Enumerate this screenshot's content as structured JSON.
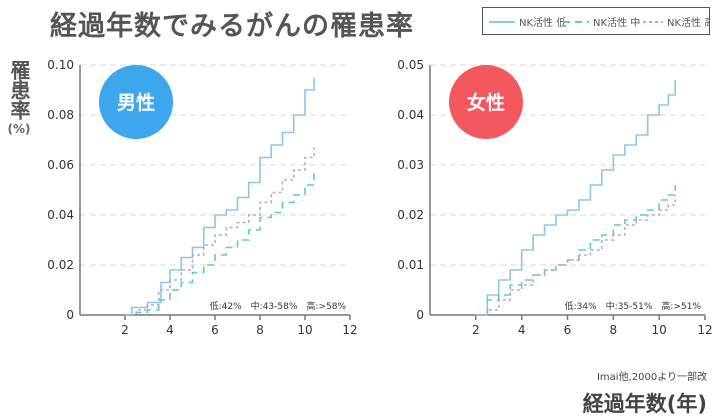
{
  "title": "経過年数でみるがんの罹患率",
  "ylabel": "罹患率",
  "yunit": "(%)",
  "xlabel": "経過年数(年)",
  "source": "Imai他,2000より一部改",
  "legend": [
    {
      "label": "NK活性 低",
      "color": "#8ec5ec",
      "style": "solid"
    },
    {
      "label": "NK活性 中",
      "color": "#5fcfae",
      "style": "dashed"
    },
    {
      "label": "NK活性 高",
      "color": "#b9a4e0",
      "style": "dotted"
    }
  ],
  "chart_data": [
    {
      "type": "line",
      "badge": "男性",
      "badge_color": "#3ea6ec",
      "annotation": "低:42%　中:43-58%　高:>58%",
      "xlim": [
        0,
        12
      ],
      "ylim": [
        0,
        0.1
      ],
      "xticks": [
        2,
        4,
        6,
        8,
        10,
        12
      ],
      "yticks": [
        0,
        0.02,
        0.04,
        0.06,
        0.08,
        0.1
      ],
      "ytick_labels": [
        "0",
        "0.02",
        "0.04",
        "0.06",
        "0.08",
        "0.10"
      ],
      "series": [
        {
          "name": "NK活性 低",
          "x": [
            2.0,
            2.3,
            3.0,
            3.6,
            4.0,
            4.5,
            5.0,
            5.5,
            6.0,
            6.5,
            7.0,
            7.5,
            8.0,
            8.5,
            9.0,
            9.5,
            10.0,
            10.4
          ],
          "y": [
            0.0,
            0.003,
            0.005,
            0.013,
            0.018,
            0.023,
            0.027,
            0.035,
            0.04,
            0.042,
            0.047,
            0.053,
            0.063,
            0.068,
            0.073,
            0.08,
            0.09,
            0.095
          ]
        },
        {
          "name": "NK活性 中",
          "x": [
            2.0,
            2.5,
            3.0,
            3.5,
            4.0,
            4.5,
            5.0,
            5.5,
            6.0,
            6.5,
            7.0,
            7.5,
            8.0,
            8.5,
            9.0,
            9.5,
            10.0,
            10.4
          ],
          "y": [
            0.0,
            0.001,
            0.002,
            0.006,
            0.01,
            0.013,
            0.017,
            0.02,
            0.024,
            0.027,
            0.03,
            0.034,
            0.039,
            0.041,
            0.045,
            0.048,
            0.052,
            0.058
          ]
        },
        {
          "name": "NK活性 高",
          "x": [
            2.0,
            2.5,
            3.0,
            3.5,
            4.0,
            4.5,
            5.0,
            5.5,
            6.0,
            6.5,
            7.0,
            7.5,
            8.0,
            8.5,
            9.0,
            9.5,
            10.0,
            10.4
          ],
          "y": [
            0.0,
            0.002,
            0.004,
            0.01,
            0.014,
            0.018,
            0.024,
            0.028,
            0.032,
            0.035,
            0.037,
            0.04,
            0.045,
            0.049,
            0.054,
            0.058,
            0.063,
            0.067
          ]
        }
      ]
    },
    {
      "type": "line",
      "badge": "女性",
      "badge_color": "#f4585f",
      "annotation": "低:34%　中:35-51%　高:>51%",
      "xlim": [
        0,
        12
      ],
      "ylim": [
        0,
        0.05
      ],
      "xticks": [
        2,
        4,
        6,
        8,
        10,
        12
      ],
      "yticks": [
        0,
        0.01,
        0.02,
        0.03,
        0.04,
        0.05
      ],
      "ytick_labels": [
        "0",
        "0.01",
        "0.02",
        "0.03",
        "0.04",
        "0.05"
      ],
      "series": [
        {
          "name": "NK活性 低",
          "x": [
            2.0,
            2.5,
            3.0,
            3.5,
            4.0,
            4.5,
            5.0,
            5.5,
            6.0,
            6.5,
            7.0,
            7.5,
            8.0,
            8.5,
            9.0,
            9.5,
            10.0,
            10.4,
            10.7
          ],
          "y": [
            0.0,
            0.004,
            0.007,
            0.009,
            0.013,
            0.016,
            0.018,
            0.02,
            0.021,
            0.023,
            0.026,
            0.029,
            0.032,
            0.034,
            0.036,
            0.04,
            0.042,
            0.044,
            0.047
          ]
        },
        {
          "name": "NK活性 中",
          "x": [
            2.0,
            2.5,
            3.0,
            3.5,
            4.0,
            4.5,
            5.0,
            5.5,
            6.0,
            6.5,
            7.0,
            7.5,
            8.0,
            8.5,
            9.0,
            9.5,
            10.0,
            10.4,
            10.7
          ],
          "y": [
            0.0,
            0.003,
            0.004,
            0.006,
            0.007,
            0.008,
            0.009,
            0.01,
            0.011,
            0.013,
            0.015,
            0.016,
            0.018,
            0.019,
            0.02,
            0.021,
            0.023,
            0.024,
            0.026
          ]
        },
        {
          "name": "NK活性 高",
          "x": [
            2.0,
            2.5,
            3.0,
            3.5,
            4.0,
            4.5,
            5.0,
            5.5,
            6.0,
            6.5,
            7.0,
            7.5,
            8.0,
            8.5,
            9.0,
            9.5,
            10.0,
            10.4,
            10.7
          ],
          "y": [
            0.0,
            0.001,
            0.003,
            0.005,
            0.006,
            0.008,
            0.009,
            0.01,
            0.011,
            0.012,
            0.013,
            0.015,
            0.016,
            0.018,
            0.019,
            0.02,
            0.021,
            0.022,
            0.024
          ]
        }
      ]
    }
  ]
}
